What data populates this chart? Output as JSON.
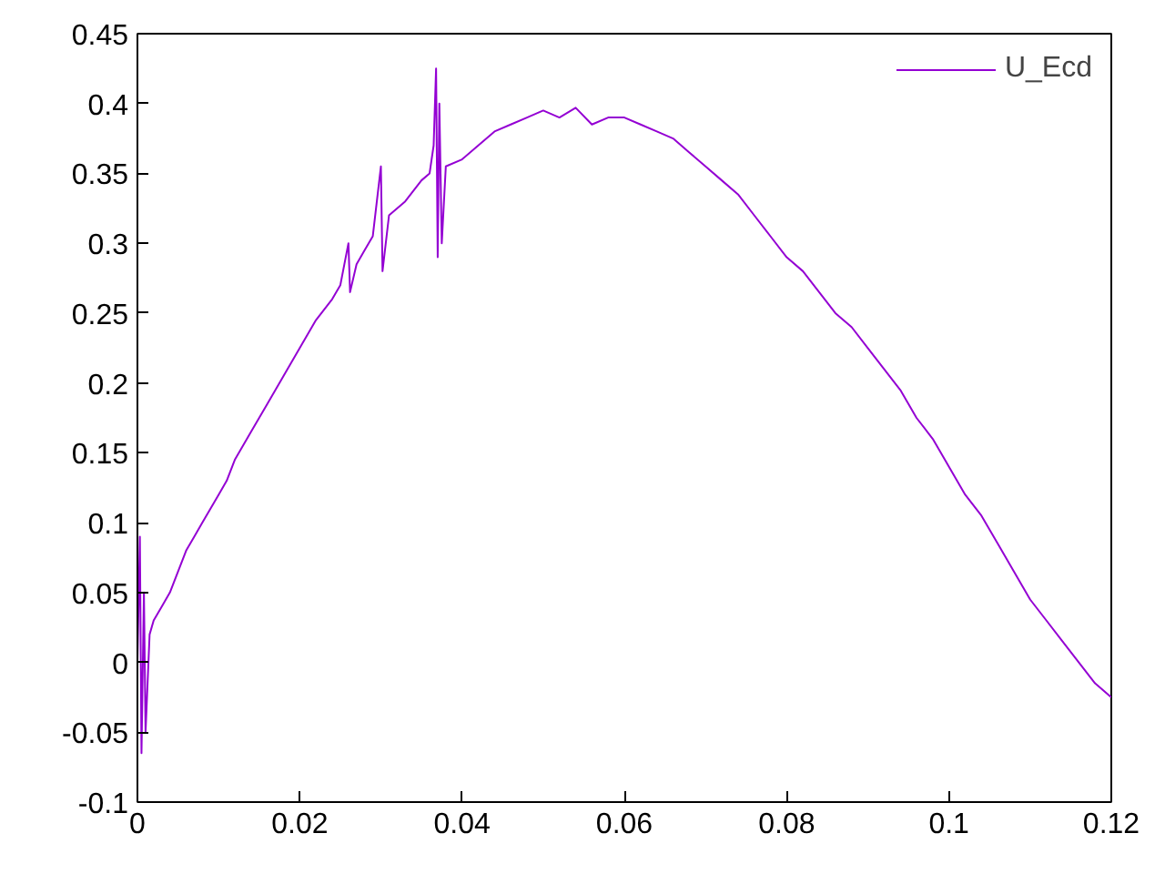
{
  "chart_data": {
    "type": "line",
    "legend": "top right",
    "grid": false,
    "marker": "none",
    "line_style": "solid",
    "xlim": [
      0,
      0.12
    ],
    "xticks": [
      0,
      0.02,
      0.04,
      0.06,
      0.08,
      0.1,
      0.12
    ],
    "ylim": [
      -0.1,
      0.45
    ],
    "yticks": [
      -0.1,
      -0.05,
      0,
      0.05,
      0.1,
      0.15,
      0.2,
      0.25,
      0.3,
      0.35,
      0.4,
      0.45
    ],
    "series": [
      {
        "name": "U_Ecd",
        "color": "#9400d3",
        "x": [
          0,
          0.0003,
          0.0005,
          0.0008,
          0.001,
          0.0015,
          0.002,
          0.003,
          0.004,
          0.005,
          0.006,
          0.007,
          0.008,
          0.009,
          0.01,
          0.011,
          0.012,
          0.014,
          0.016,
          0.018,
          0.02,
          0.022,
          0.024,
          0.025,
          0.026,
          0.0262,
          0.027,
          0.028,
          0.029,
          0.03,
          0.0302,
          0.031,
          0.033,
          0.035,
          0.036,
          0.0365,
          0.0368,
          0.037,
          0.0372,
          0.0375,
          0.038,
          0.04,
          0.042,
          0.044,
          0.046,
          0.048,
          0.05,
          0.052,
          0.054,
          0.056,
          0.058,
          0.06,
          0.062,
          0.064,
          0.066,
          0.068,
          0.07,
          0.072,
          0.074,
          0.076,
          0.078,
          0.08,
          0.082,
          0.084,
          0.086,
          0.088,
          0.09,
          0.092,
          0.094,
          0.096,
          0.098,
          0.1,
          0.102,
          0.104,
          0.106,
          0.108,
          0.11,
          0.112,
          0.114,
          0.116,
          0.118,
          0.12
        ],
        "values": [
          0,
          0.09,
          -0.065,
          0.05,
          -0.05,
          0.02,
          0.03,
          0.04,
          0.05,
          0.065,
          0.08,
          0.09,
          0.1,
          0.11,
          0.12,
          0.13,
          0.145,
          0.165,
          0.185,
          0.205,
          0.225,
          0.245,
          0.26,
          0.27,
          0.3,
          0.265,
          0.285,
          0.295,
          0.305,
          0.355,
          0.28,
          0.32,
          0.33,
          0.345,
          0.35,
          0.37,
          0.425,
          0.29,
          0.4,
          0.3,
          0.355,
          0.36,
          0.37,
          0.38,
          0.385,
          0.39,
          0.395,
          0.39,
          0.397,
          0.385,
          0.39,
          0.39,
          0.385,
          0.38,
          0.375,
          0.365,
          0.355,
          0.345,
          0.335,
          0.32,
          0.305,
          0.29,
          0.28,
          0.265,
          0.25,
          0.24,
          0.225,
          0.21,
          0.195,
          0.175,
          0.16,
          0.14,
          0.12,
          0.105,
          0.085,
          0.065,
          0.045,
          0.03,
          0.015,
          0.0,
          -0.015,
          -0.025
        ]
      }
    ]
  }
}
